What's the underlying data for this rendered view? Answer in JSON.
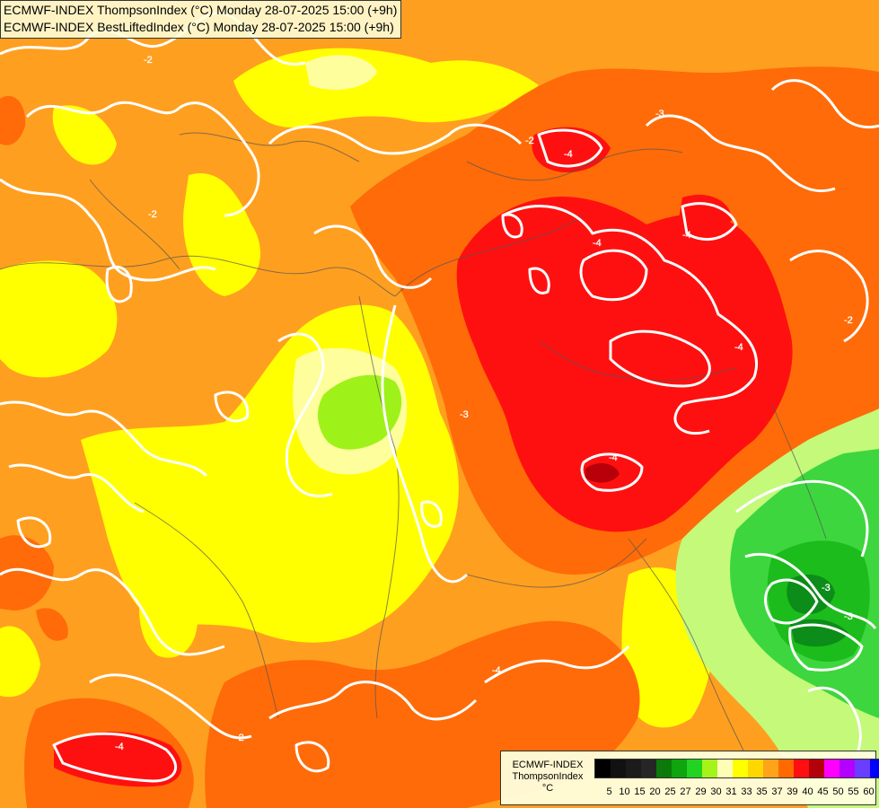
{
  "title": {
    "line1": "ECMWF-INDEX ThompsonIndex (°C) Monday 28-07-2025 15:00 (+9h)",
    "line2": "ECMWF-INDEX BestLiftedIndex (°C) Monday 28-07-2025 15:00 (+9h)"
  },
  "legend": {
    "title": "ECMWF-INDEX",
    "subtitle": "ThompsonIndex",
    "unit": "°C",
    "ticks": [
      "5",
      "10",
      "15",
      "20",
      "25",
      "27",
      "29",
      "30",
      "31",
      "33",
      "35",
      "37",
      "39",
      "40",
      "45",
      "50",
      "55",
      "60"
    ],
    "colors": [
      "#000000",
      "#111111",
      "#1b1b1b",
      "#262626",
      "#0b7a0b",
      "#0ea50e",
      "#22d322",
      "#a6f31a",
      "#fdfdb6",
      "#ffff00",
      "#ffd700",
      "#ffa31a",
      "#ff6a00",
      "#ff0f10",
      "#b3000a",
      "#ff00ff",
      "#b400ff",
      "#6a3dff",
      "#0000ff"
    ]
  },
  "map": {
    "colors": {
      "base": "#ff9f1f",
      "orange_dark": "#ff6b08",
      "yellow": "#ffff00",
      "light_yellow": "#fefe9c",
      "red": "#ff1010",
      "dark_red": "#b8000a",
      "lime": "#9ef21a",
      "light_green": "#c4f97a",
      "green": "#3ed63e",
      "green_mid": "#1bbc1b",
      "green_dark": "#0c8c18",
      "contour": "#ffffff",
      "border": "#555555"
    },
    "contour_labels": [
      "-2",
      "-2",
      "-2",
      "-2",
      "-2",
      "-3",
      "-3",
      "-3",
      "-4",
      "-4",
      "-4",
      "-4",
      "-4",
      "-4",
      "-4",
      "-3"
    ]
  }
}
